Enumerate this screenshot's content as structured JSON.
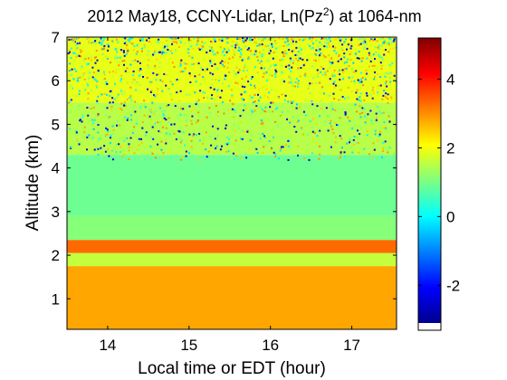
{
  "chart_data": {
    "type": "heatmap",
    "title": {
      "prefix": "2012 May18, CCNY-Lidar, Ln(Pz",
      "superscript": "2",
      "suffix": ") at 1064-nm"
    },
    "xlabel": "Local time or EDT (hour)",
    "ylabel": "Altitude (km)",
    "xlim": [
      13.5,
      17.55
    ],
    "ylim": [
      0.3,
      7.0
    ],
    "x_ticks": [
      14,
      15,
      16,
      17
    ],
    "y_ticks": [
      1,
      2,
      3,
      4,
      5,
      6,
      7
    ],
    "colorbar": {
      "colormap": "jet",
      "range": [
        -3.1,
        5.2
      ],
      "ticks": [
        -2,
        0,
        2,
        4
      ]
    },
    "layers": [
      {
        "altitude_range_km": [
          0.3,
          1.75
        ],
        "value": 2.8
      },
      {
        "altitude_range_km": [
          1.75,
          2.05
        ],
        "value": 1.6
      },
      {
        "altitude_range_km": [
          2.05,
          2.35
        ],
        "value": 3.3
      },
      {
        "altitude_range_km": [
          2.35,
          2.9
        ],
        "value": 1.1
      },
      {
        "altitude_range_km": [
          2.9,
          4.3
        ],
        "value": 0.9
      },
      {
        "altitude_range_km": [
          4.3,
          5.5
        ],
        "value": 1.5
      },
      {
        "altitude_range_km": [
          5.5,
          7.0
        ],
        "value": 1.9
      }
    ],
    "colors": {
      "low": "#00008f",
      "mid": "#00ffff",
      "high": "#800000"
    }
  }
}
